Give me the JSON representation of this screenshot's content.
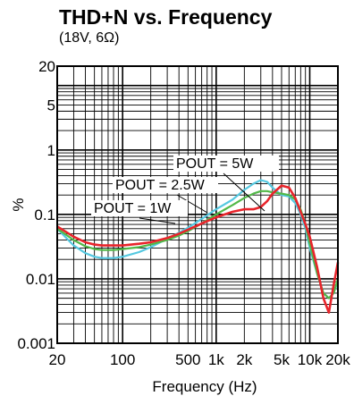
{
  "chart_data": {
    "type": "line",
    "title": "THD+N vs. Frequency",
    "subtitle": "(18V, 6Ω)",
    "xlabel": "Frequency (Hz)",
    "ylabel": "%",
    "x_scale": "log",
    "y_scale": "log",
    "xlim": [
      20,
      20000
    ],
    "ylim": [
      0.001,
      20
    ],
    "grid": true,
    "x_ticks": [
      {
        "value": 20,
        "label": "20"
      },
      {
        "value": 100,
        "label": "100"
      },
      {
        "value": 500,
        "label": "500"
      },
      {
        "value": 1000,
        "label": "1k"
      },
      {
        "value": 2000,
        "label": "2k"
      },
      {
        "value": 5000,
        "label": "5k"
      },
      {
        "value": 10000,
        "label": "10k"
      },
      {
        "value": 20000,
        "label": "20k"
      }
    ],
    "y_ticks": [
      {
        "value": 20,
        "label": "20"
      },
      {
        "value": 5,
        "label": "5"
      },
      {
        "value": 1,
        "label": "1"
      },
      {
        "value": 0.1,
        "label": "0.1"
      },
      {
        "value": 0.01,
        "label": "0.01"
      },
      {
        "value": 0.001,
        "label": "0.001"
      }
    ],
    "series": [
      {
        "name": "POUT = 1W",
        "color": "#55c8e0",
        "x": [
          20,
          30,
          40,
          50,
          60,
          80,
          100,
          150,
          200,
          300,
          400,
          500,
          700,
          1000,
          1500,
          2000,
          2500,
          3000,
          3500,
          4000,
          5000,
          6000,
          7000,
          8000,
          9000,
          10000,
          12000,
          14000,
          16000,
          18000,
          20000
        ],
        "y": [
          0.06,
          0.033,
          0.025,
          0.022,
          0.021,
          0.021,
          0.022,
          0.026,
          0.031,
          0.042,
          0.052,
          0.062,
          0.085,
          0.12,
          0.17,
          0.24,
          0.3,
          0.34,
          0.32,
          0.26,
          0.2,
          0.19,
          0.15,
          0.1,
          0.06,
          0.03,
          0.012,
          0.006,
          0.005,
          0.006,
          0.009
        ]
      },
      {
        "name": "POUT = 2.5W",
        "color": "#52b848",
        "x": [
          20,
          30,
          40,
          50,
          60,
          80,
          100,
          150,
          200,
          300,
          400,
          500,
          700,
          1000,
          1500,
          2000,
          2500,
          3000,
          3500,
          4000,
          5000,
          6000,
          7000,
          8000,
          9000,
          10000,
          12000,
          14000,
          16000,
          18000,
          20000
        ],
        "y": [
          0.06,
          0.04,
          0.032,
          0.029,
          0.028,
          0.028,
          0.029,
          0.031,
          0.034,
          0.04,
          0.047,
          0.055,
          0.072,
          0.1,
          0.14,
          0.18,
          0.21,
          0.23,
          0.23,
          0.22,
          0.21,
          0.2,
          0.17,
          0.12,
          0.07,
          0.035,
          0.012,
          0.006,
          0.005,
          0.006,
          0.01
        ]
      },
      {
        "name": "POUT = 5W",
        "color": "#e8242b",
        "x": [
          20,
          30,
          40,
          50,
          60,
          80,
          100,
          150,
          200,
          300,
          400,
          500,
          700,
          1000,
          1500,
          2000,
          2500,
          3000,
          3500,
          4000,
          5000,
          6000,
          7000,
          8000,
          9000,
          10000,
          12000,
          14000,
          16000,
          18000,
          20000
        ],
        "y": [
          0.065,
          0.045,
          0.037,
          0.034,
          0.033,
          0.033,
          0.033,
          0.035,
          0.037,
          0.043,
          0.05,
          0.058,
          0.072,
          0.09,
          0.11,
          0.12,
          0.12,
          0.13,
          0.16,
          0.21,
          0.28,
          0.26,
          0.18,
          0.11,
          0.07,
          0.045,
          0.015,
          0.005,
          0.003,
          0.008,
          0.018
        ]
      }
    ],
    "annotations": [
      {
        "text": "POUT = 5W",
        "series": "POUT = 5W"
      },
      {
        "text": "POUT = 2.5W",
        "series": "POUT = 2.5W"
      },
      {
        "text": "POUT = 1W",
        "series": "POUT = 1W"
      }
    ]
  }
}
